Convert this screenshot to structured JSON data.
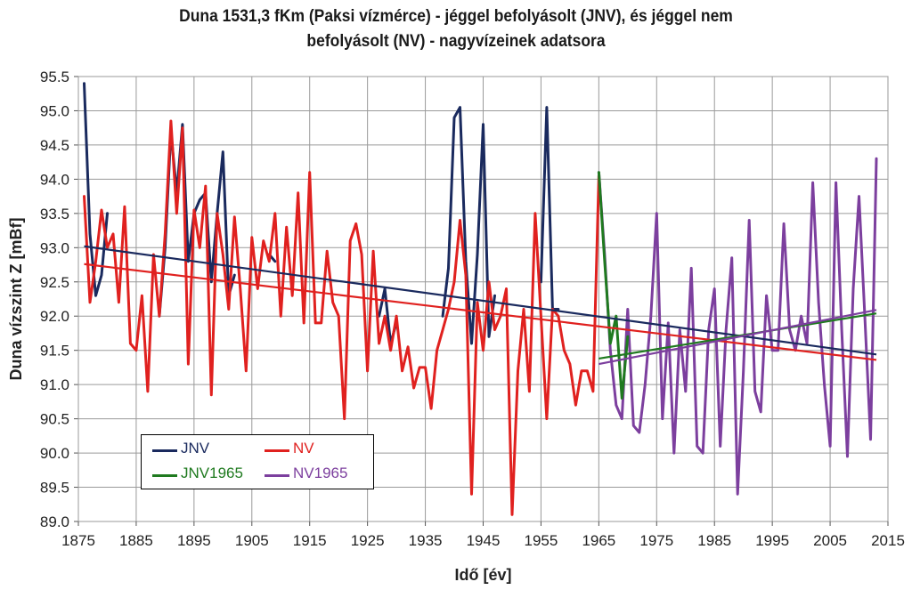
{
  "chart_data": {
    "type": "line",
    "title": "Duna 1531,3 fKm (Paksi vízmérce) - jéggel befolyásolt (JNV), és jéggel nem befolyásolt (NV) - nagyvízeinek adatsora",
    "title_lines": [
      "Duna 1531,3 fKm (Paksi vízmérce) - jéggel befolyásolt (JNV), és jéggel nem",
      "befolyásolt (NV) - nagyvízeinek adatsora"
    ],
    "xlabel": "Idő [év]",
    "ylabel": "Duna vízszint Z [mBf]",
    "xlim": [
      1875,
      2015
    ],
    "ylim": [
      89.0,
      95.5
    ],
    "xticks": [
      1875,
      1885,
      1895,
      1905,
      1915,
      1925,
      1935,
      1945,
      1955,
      1965,
      1975,
      1985,
      1995,
      2005,
      2015
    ],
    "yticks": [
      "89.0",
      "89.5",
      "90.0",
      "90.5",
      "91.0",
      "91.5",
      "92.0",
      "92.5",
      "93.0",
      "93.5",
      "94.0",
      "94.5",
      "95.0",
      "95.5"
    ],
    "grid": true,
    "legend_position": "bottom-left",
    "series": [
      {
        "name": "JNV",
        "color": "#1a2a5e",
        "x": [
          1876,
          1877,
          1878,
          1879,
          1880,
          1889,
          1890,
          1891,
          1892,
          1893,
          1894,
          1895,
          1896,
          1897,
          1898,
          1899,
          1900,
          1901,
          1902,
          1908,
          1909,
          1927,
          1928,
          1929,
          1930,
          1938,
          1939,
          1940,
          1941,
          1942,
          1943,
          1944,
          1945,
          1946,
          1947,
          1955,
          1956,
          1957,
          1958
        ],
        "y": [
          95.4,
          93.2,
          92.3,
          92.6,
          93.5,
          92.0,
          93.0,
          94.7,
          93.8,
          94.8,
          92.8,
          93.5,
          93.7,
          93.8,
          92.5,
          93.5,
          94.4,
          92.3,
          92.6,
          92.9,
          92.8,
          92.0,
          92.4,
          91.6,
          91.9,
          92.0,
          92.7,
          94.9,
          95.05,
          92.8,
          91.6,
          92.9,
          94.8,
          91.7,
          92.3,
          92.5,
          95.05,
          92.1,
          92.1
        ]
      },
      {
        "name": "NV",
        "color": "#e0211f",
        "x": [
          1876,
          1877,
          1878,
          1879,
          1880,
          1881,
          1882,
          1883,
          1884,
          1885,
          1886,
          1887,
          1888,
          1889,
          1890,
          1891,
          1892,
          1893,
          1894,
          1895,
          1896,
          1897,
          1898,
          1899,
          1900,
          1901,
          1902,
          1903,
          1904,
          1905,
          1906,
          1907,
          1908,
          1909,
          1910,
          1911,
          1912,
          1913,
          1914,
          1915,
          1916,
          1917,
          1918,
          1919,
          1920,
          1921,
          1922,
          1923,
          1924,
          1925,
          1926,
          1927,
          1928,
          1929,
          1930,
          1931,
          1932,
          1933,
          1934,
          1935,
          1936,
          1937,
          1938,
          1939,
          1940,
          1941,
          1942,
          1943,
          1944,
          1945,
          1946,
          1947,
          1948,
          1949,
          1950,
          1951,
          1952,
          1953,
          1954,
          1955,
          1956,
          1957,
          1958,
          1959,
          1960,
          1961,
          1962,
          1963,
          1964,
          1965
        ],
        "y": [
          93.75,
          92.2,
          92.8,
          93.55,
          93.0,
          93.2,
          92.2,
          93.6,
          91.6,
          91.5,
          92.3,
          90.9,
          92.9,
          92.0,
          93.2,
          94.85,
          93.5,
          94.75,
          91.3,
          93.55,
          93.0,
          93.9,
          90.85,
          93.5,
          92.9,
          92.1,
          93.45,
          92.4,
          91.2,
          93.15,
          92.4,
          93.1,
          92.8,
          93.5,
          92.0,
          93.3,
          92.3,
          93.8,
          91.9,
          94.1,
          91.9,
          91.9,
          92.95,
          92.2,
          92.0,
          90.5,
          93.1,
          93.35,
          92.9,
          91.2,
          92.95,
          91.6,
          92.0,
          91.5,
          92.0,
          91.2,
          91.55,
          90.95,
          91.25,
          91.25,
          90.65,
          91.5,
          91.8,
          92.1,
          92.5,
          93.4,
          92.6,
          89.4,
          92.2,
          91.5,
          92.5,
          91.8,
          92.0,
          92.4,
          89.1,
          91.2,
          92.1,
          90.9,
          93.5,
          92.0,
          90.5,
          92.1,
          92.0,
          91.5,
          91.3,
          90.7,
          91.2,
          91.2,
          90.9,
          94.05
        ]
      },
      {
        "name": "JNV1965",
        "color": "#1f7a1f",
        "x": [
          1965,
          1966,
          1967,
          1968,
          1969,
          1970
        ],
        "y": [
          94.1,
          92.8,
          91.6,
          92.0,
          90.8,
          91.7
        ]
      },
      {
        "name": "NV1965",
        "color": "#7c3f9e",
        "x": [
          1965,
          1966,
          1967,
          1968,
          1969,
          1970,
          1971,
          1972,
          1973,
          1974,
          1975,
          1976,
          1977,
          1978,
          1979,
          1980,
          1981,
          1982,
          1983,
          1984,
          1985,
          1986,
          1987,
          1988,
          1989,
          1990,
          1991,
          1992,
          1993,
          1994,
          1995,
          1996,
          1997,
          1998,
          1999,
          2000,
          2001,
          2002,
          2003,
          2004,
          2005,
          2006,
          2007,
          2008,
          2009,
          2010,
          2011,
          2012,
          2013
        ],
        "y": [
          94.1,
          92.9,
          91.5,
          90.7,
          90.5,
          92.1,
          90.4,
          90.3,
          91.0,
          92.0,
          93.5,
          90.5,
          91.9,
          90.0,
          91.8,
          90.9,
          92.7,
          90.1,
          90.0,
          91.8,
          92.4,
          90.1,
          91.8,
          92.85,
          89.4,
          91.2,
          93.4,
          90.9,
          90.6,
          92.3,
          91.5,
          91.5,
          93.35,
          91.8,
          91.5,
          92.0,
          91.6,
          93.95,
          92.2,
          91.0,
          90.1,
          93.95,
          91.8,
          89.95,
          92.4,
          93.75,
          92.0,
          90.2,
          94.3
        ]
      }
    ],
    "trendlines": [
      {
        "name": "JNV trend",
        "color": "#1a2a5e",
        "x": [
          1876,
          2013
        ],
        "y": [
          93.02,
          91.44
        ]
      },
      {
        "name": "NV trend",
        "color": "#e0211f",
        "x": [
          1876,
          2013
        ],
        "y": [
          92.76,
          91.36
        ]
      },
      {
        "name": "JNV1965 trend",
        "color": "#1f7a1f",
        "x": [
          1965,
          2013
        ],
        "y": [
          91.38,
          92.04
        ]
      },
      {
        "name": "NV1965 trend",
        "color": "#7c3f9e",
        "x": [
          1965,
          2013
        ],
        "y": [
          91.3,
          92.09
        ]
      }
    ]
  }
}
